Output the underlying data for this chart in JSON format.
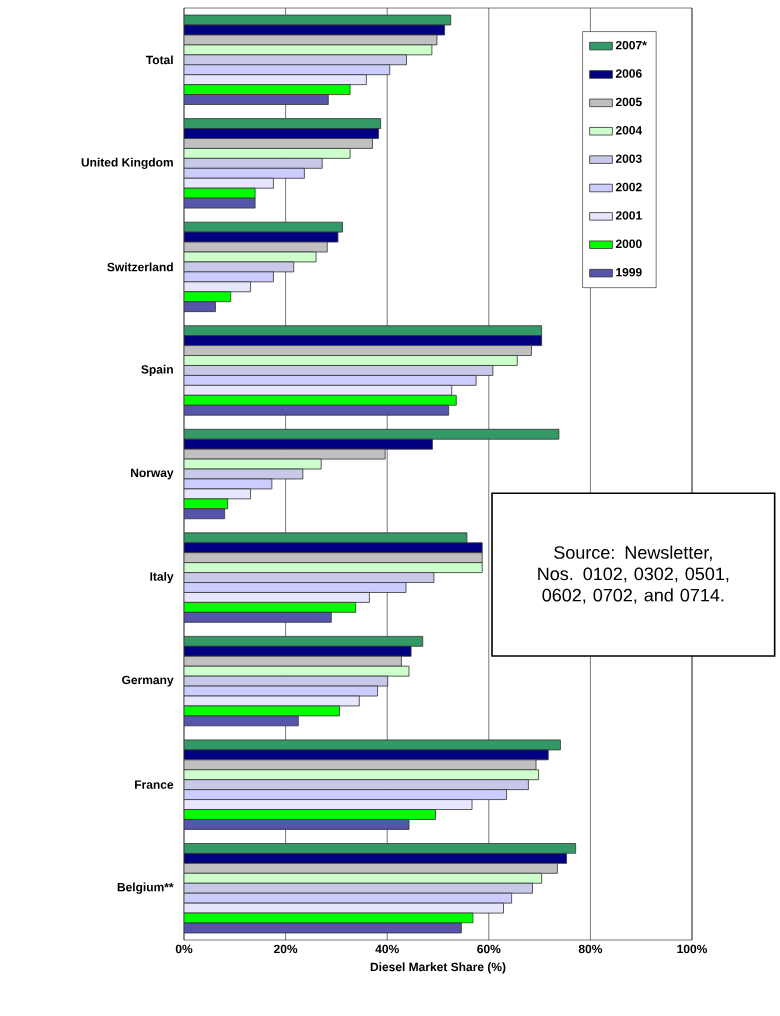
{
  "chart_data": {
    "type": "bar",
    "orientation": "horizontal",
    "xlabel": "Diesel Market Share (%)",
    "categories": [
      "Total",
      "United Kingdom",
      "Switzerland",
      "Spain",
      "Norway",
      "Italy",
      "Germany",
      "France",
      "Belgium**"
    ],
    "series": [
      {
        "name": "2007*",
        "color": "#339966",
        "values": [
          52.5,
          38.7,
          31.2,
          70.4,
          73.8,
          55.7,
          47.0,
          74.1,
          77.1
        ]
      },
      {
        "name": "2006",
        "color": "#000080",
        "values": [
          51.3,
          38.3,
          30.3,
          70.4,
          48.9,
          58.7,
          44.7,
          71.7,
          75.3
        ]
      },
      {
        "name": "2005",
        "color": "#c0c0c0",
        "values": [
          49.8,
          37.1,
          28.2,
          68.4,
          39.6,
          58.7,
          42.8,
          69.3,
          73.5
        ]
      },
      {
        "name": "2004",
        "color": "#ccffcc",
        "values": [
          48.8,
          32.7,
          26.0,
          65.6,
          27.0,
          58.7,
          44.3,
          69.8,
          70.4
        ]
      },
      {
        "name": "2003",
        "color": "#c8c8e8",
        "values": [
          43.8,
          27.2,
          21.6,
          60.8,
          23.4,
          49.2,
          40.1,
          67.8,
          68.6
        ]
      },
      {
        "name": "2002",
        "color": "#ccccff",
        "values": [
          40.5,
          23.7,
          17.6,
          57.5,
          17.3,
          43.7,
          38.1,
          63.5,
          64.5
        ]
      },
      {
        "name": "2001",
        "color": "#e6e6ff",
        "values": [
          35.9,
          17.6,
          13.1,
          52.7,
          13.1,
          36.5,
          34.5,
          56.7,
          62.9
        ]
      },
      {
        "name": "2000",
        "color": "#00ff00",
        "values": [
          32.7,
          14.0,
          9.2,
          53.6,
          8.6,
          33.8,
          30.6,
          49.5,
          56.9
        ]
      },
      {
        "name": "1999",
        "color": "#5555aa",
        "values": [
          28.4,
          14.0,
          6.2,
          52.1,
          8.0,
          29.0,
          22.5,
          44.3,
          54.6
        ]
      }
    ],
    "xlim": [
      0,
      100
    ],
    "xticks": [
      {
        "value": 0,
        "label": "0%"
      },
      {
        "value": 20,
        "label": "20%"
      },
      {
        "value": 40,
        "label": "40%"
      },
      {
        "value": 60,
        "label": "60%"
      },
      {
        "value": 80,
        "label": "80%"
      },
      {
        "value": 100,
        "label": "100%"
      }
    ],
    "grid": "x",
    "legend": "top right",
    "annotations": [
      "Source: Newsletter, Nos. 0102, 0302, 0501, 0602, 0702, and 0714."
    ]
  }
}
